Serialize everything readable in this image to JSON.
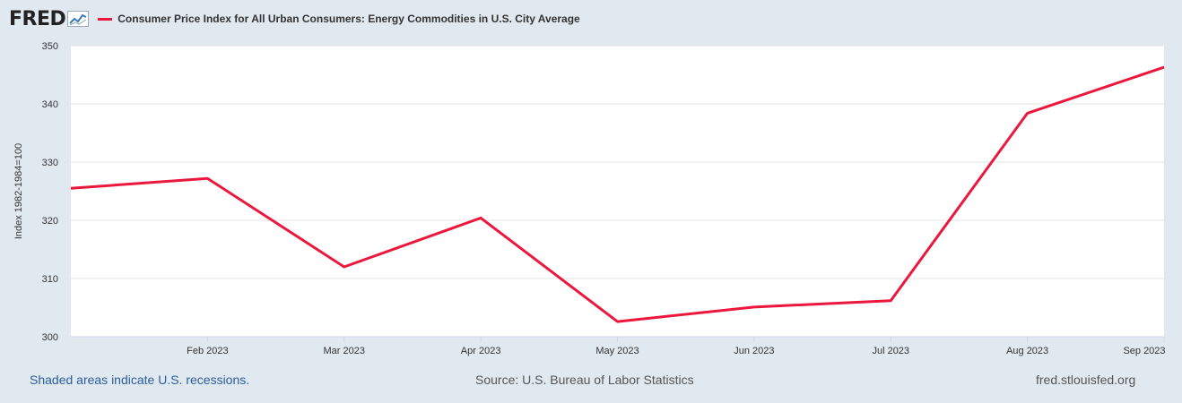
{
  "brand": {
    "logo_text": "FRED",
    "logo_icon": "chart-trend-icon"
  },
  "chart_data": {
    "type": "line",
    "title": "Consumer Price Index for All Urban Consumers: Energy Commodities in U.S. City Average",
    "ylabel": "Index 1982-1984=100",
    "xlabel": "",
    "ylim": [
      300,
      350
    ],
    "yticks": [
      300,
      310,
      320,
      330,
      340,
      350
    ],
    "x_tick_labels": [
      "Feb 2023",
      "Mar 2023",
      "Apr 2023",
      "May 2023",
      "Jun 2023",
      "Jul 2023",
      "Aug 2023",
      "Sep 2023"
    ],
    "series": [
      {
        "name": "Consumer Price Index for All Urban Consumers: Energy Commodities in U.S. City Average",
        "color": "#ec173d",
        "x": [
          "2023-01",
          "2023-02",
          "2023-03",
          "2023-04",
          "2023-05",
          "2023-06",
          "2023-07",
          "2023-08",
          "2023-09"
        ],
        "values": [
          325.5,
          327.2,
          312.0,
          320.4,
          302.6,
          305.1,
          306.2,
          338.4,
          346.3
        ]
      }
    ],
    "grid": true,
    "legend_position": "top-left"
  },
  "footer": {
    "recession_note": "Shaded areas indicate U.S. recessions.",
    "source": "Source: U.S. Bureau of Labor Statistics",
    "site": "fred.stlouisfed.org"
  }
}
